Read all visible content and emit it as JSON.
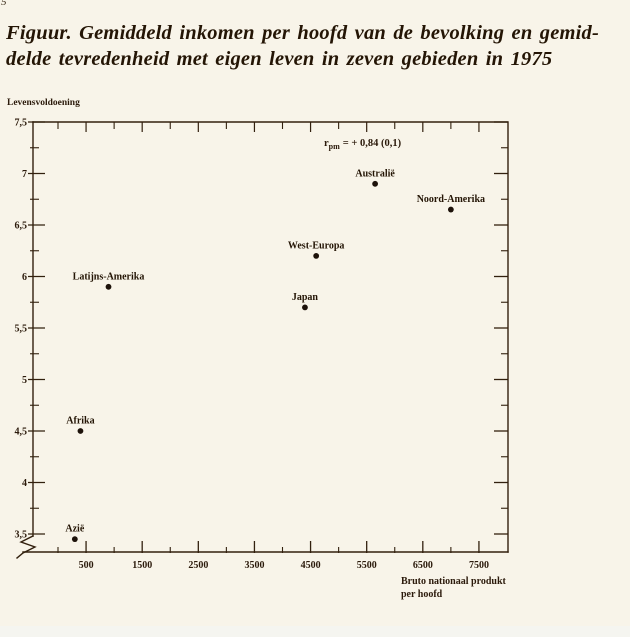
{
  "page": {
    "corner_fragment": "5",
    "title_line1": "Figuur. Gemiddeld inkomen per hoofd van de bevolking en gemid-",
    "title_line2": "delde tevredenheid met eigen leven in zeven gebieden in 1975"
  },
  "colors": {
    "paper": "#f8f4e9",
    "ink": "#2b1a0b",
    "line": "#32200e",
    "dot": "#1d120a",
    "bottom_strip": "#f5f5f0"
  },
  "chart_data": {
    "type": "scatter",
    "title": "Gemiddeld inkomen per hoofd van de bevolking en gemiddelde tevredenheid met eigen leven in zeven gebieden in 1975",
    "ylabel": "Levensvoldoening",
    "xlabel_line1": "Bruto nationaal produkt",
    "xlabel_line2": "per hoofd",
    "annotation": {
      "symbol": "r",
      "subscript": "pm",
      "text": "= + 0,84 (0,1)"
    },
    "xlim": [
      0,
      8000
    ],
    "ylim": [
      3.5,
      7.5
    ],
    "axis_break": true,
    "grid": false,
    "legend": null,
    "x_major_ticks": [
      {
        "v": 500,
        "label": "500"
      },
      {
        "v": 1500,
        "label": "1500"
      },
      {
        "v": 2500,
        "label": "2500"
      },
      {
        "v": 3500,
        "label": "3500"
      },
      {
        "v": 4500,
        "label": "4500"
      },
      {
        "v": 5500,
        "label": "5500"
      },
      {
        "v": 6500,
        "label": "6500"
      },
      {
        "v": 7500,
        "label": "7500"
      }
    ],
    "x_minor_ticks": [
      0,
      1000,
      2000,
      3000,
      4000,
      5000,
      6000,
      7000
    ],
    "y_major_ticks": [
      {
        "v": 7.5,
        "label": "7,5"
      },
      {
        "v": 7,
        "label": "7"
      },
      {
        "v": 6.5,
        "label": "6,5"
      },
      {
        "v": 6,
        "label": "6"
      },
      {
        "v": 5.5,
        "label": "5,5"
      },
      {
        "v": 5,
        "label": "5"
      },
      {
        "v": 4.5,
        "label": "4,5"
      },
      {
        "v": 4,
        "label": "4"
      },
      {
        "v": 3.5,
        "label": "3,5"
      }
    ],
    "y_minor_ticks": [
      7.25,
      6.75,
      6.25,
      5.75,
      5.25,
      4.75,
      4.25,
      3.75
    ],
    "points": [
      {
        "name": "Azië",
        "x": 300,
        "y": 3.45
      },
      {
        "name": "Afrika",
        "x": 400,
        "y": 4.5
      },
      {
        "name": "Latijns-Amerika",
        "x": 900,
        "y": 5.9
      },
      {
        "name": "Japan",
        "x": 4400,
        "y": 5.7
      },
      {
        "name": "West-Europa",
        "x": 4600,
        "y": 6.2
      },
      {
        "name": "Australië",
        "x": 5650,
        "y": 6.9
      },
      {
        "name": "Noord-Amerika",
        "x": 7000,
        "y": 6.65
      }
    ]
  }
}
